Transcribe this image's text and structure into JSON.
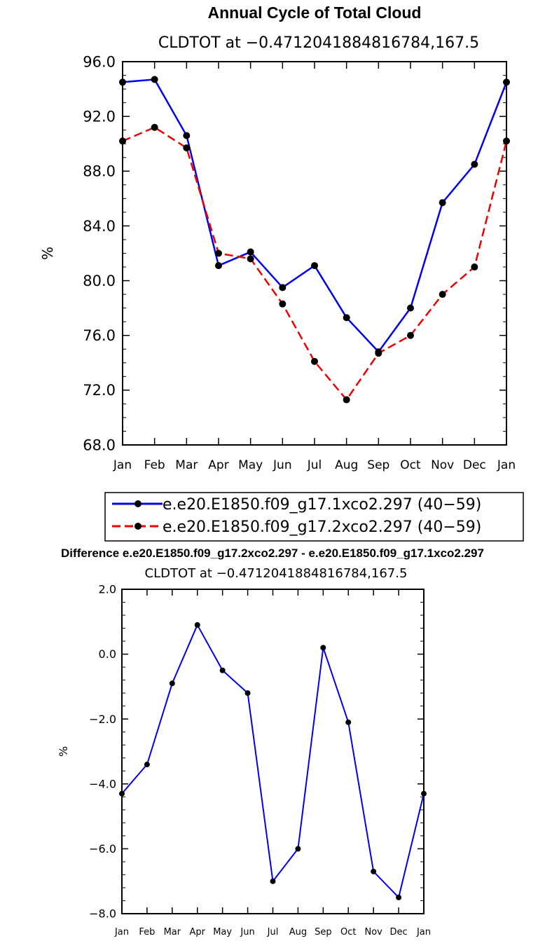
{
  "chart_data": [
    {
      "type": "line",
      "title": "Annual Cycle of Total Cloud",
      "subtitle": "CLDTOT at −0.4712041884816784,167.5",
      "xlabel": "",
      "ylabel": "%",
      "categories": [
        "Jan",
        "Feb",
        "Mar",
        "Apr",
        "May",
        "Jun",
        "Jul",
        "Aug",
        "Sep",
        "Oct",
        "Nov",
        "Dec",
        "Jan"
      ],
      "ylim": [
        68.0,
        96.0
      ],
      "yticks": [
        "68.0",
        "72.0",
        "76.0",
        "80.0",
        "84.0",
        "88.0",
        "92.0",
        "96.0"
      ],
      "ytick_values": [
        68,
        72,
        76,
        80,
        84,
        88,
        92,
        96
      ],
      "legend_position": "bottom",
      "series": [
        {
          "name": "e.e20.E1850.f09_g17.1xco2.297 (40−59)",
          "color": "#0000ee",
          "dash": "solid",
          "values": [
            94.5,
            94.7,
            90.6,
            81.1,
            82.1,
            79.5,
            81.1,
            77.3,
            74.8,
            78.0,
            85.7,
            88.5,
            94.5
          ]
        },
        {
          "name": "e.e20.E1850.f09_g17.2xco2.297 (40−59)",
          "color": "#ee0000",
          "dash": "dashed",
          "values": [
            90.2,
            91.2,
            89.7,
            82.0,
            81.6,
            78.3,
            74.1,
            71.3,
            74.7,
            76.0,
            79.0,
            81.0,
            90.2
          ]
        }
      ]
    },
    {
      "type": "line",
      "title": "Difference e.e20.E1850.f09_g17.2xco2.297 - e.e20.E1850.f09_g17.1xco2.297",
      "subtitle": "CLDTOT at −0.4712041884816784,167.5",
      "xlabel": "",
      "ylabel": "%",
      "categories": [
        "Jan",
        "Feb",
        "Mar",
        "Apr",
        "May",
        "Jun",
        "Jul",
        "Aug",
        "Sep",
        "Oct",
        "Nov",
        "Dec",
        "Jan"
      ],
      "ylim": [
        -8.0,
        2.0
      ],
      "yticks": [
        "−8.0",
        "−6.0",
        "−4.0",
        "−2.0",
        "0.0",
        "2.0"
      ],
      "ytick_values": [
        -8,
        -6,
        -4,
        -2,
        0,
        2
      ],
      "series": [
        {
          "name": "difference",
          "color": "#0000ee",
          "dash": "solid",
          "values": [
            -4.3,
            -3.4,
            -0.9,
            0.9,
            -0.5,
            -1.2,
            -7.0,
            -6.0,
            0.2,
            -2.1,
            -6.7,
            -7.5,
            -4.3
          ]
        }
      ]
    }
  ]
}
